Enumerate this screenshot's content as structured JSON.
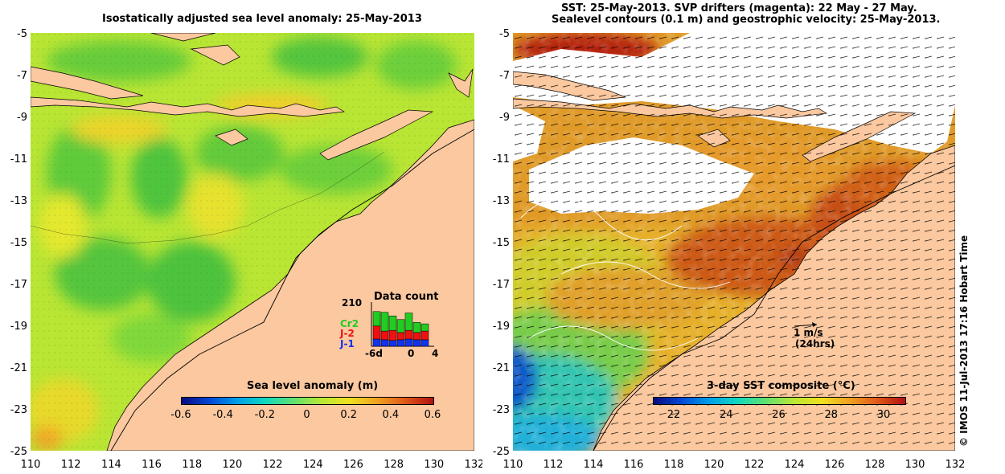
{
  "left_panel": {
    "title": "Isostatically adjusted sea level anomaly: 25-May-2013",
    "colorbar_label": "Sea level anomaly (m)",
    "colorbar_ticks": [
      "-0.6",
      "-0.4",
      "-0.2",
      "0",
      "0.2",
      "0.4",
      "0.6"
    ],
    "data_count": {
      "title": "Data count",
      "max_label": "210",
      "legend": [
        {
          "name": "Cr2",
          "color": "#22cc22"
        },
        {
          "name": "J-2",
          "color": "#ee1111"
        },
        {
          "name": "J-1",
          "color": "#1133ee"
        }
      ],
      "x_ticks": [
        "-6d",
        "0",
        "4"
      ]
    }
  },
  "right_panel": {
    "title_line1": "SST: 25-May-2013. SVP drifters (magenta): 22 May - 27 May.",
    "title_line2": "Sealevel contours (0.1 m) and geostrophic velocity: 25-May-2013.",
    "colorbar_label": "3-day SST composite (°C)",
    "colorbar_ticks": [
      "22",
      "24",
      "26",
      "28",
      "30"
    ],
    "scale_label": "1 m/s",
    "scale_sub": "(24hrs)"
  },
  "axes": {
    "lat_ticks": [
      "-5",
      "-7",
      "-9",
      "-11",
      "-13",
      "-15",
      "-17",
      "-19",
      "-21",
      "-23",
      "-25"
    ],
    "lon_ticks": [
      "110",
      "112",
      "114",
      "116",
      "118",
      "120",
      "122",
      "124",
      "126",
      "128",
      "130",
      "132"
    ]
  },
  "credit": "© IMOS 11-Jul-2013 17:16 Hobart Time",
  "colors": {
    "land": "#fbc89f",
    "sla_base": "#b9e534",
    "sst_warm": "#d86418",
    "sst_cool": "#33c3a0",
    "cloud": "#ffffff"
  }
}
